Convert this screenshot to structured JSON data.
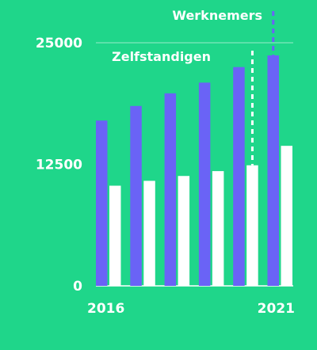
{
  "colors": {
    "background": "#1fd68a",
    "werknemers": "#6a63f6",
    "zelfstandigen": "#ffffff",
    "text": "#ffffff"
  },
  "chart_data": {
    "type": "bar",
    "title": "",
    "xlabel": "",
    "ylabel": "",
    "ylim": [
      0,
      25000
    ],
    "yticks": [
      0,
      12500,
      25000
    ],
    "x": [
      2016,
      2017,
      2018,
      2019,
      2020,
      2021
    ],
    "xtick_labels": [
      "2016",
      "",
      "",
      "",
      "",
      "2021"
    ],
    "legend": "none",
    "grid": false,
    "series": [
      {
        "name": "Werknemers",
        "values": [
          17000,
          18500,
          19800,
          20900,
          22500,
          23700
        ]
      },
      {
        "name": "Zelfstandigen",
        "values": [
          10300,
          10800,
          11300,
          11800,
          12400,
          14400
        ]
      }
    ],
    "annotations": [
      {
        "text": "Werknemers",
        "series": "Werknemers",
        "year": 2021
      },
      {
        "text": "Zelfstandigen",
        "series": "Zelfstandigen",
        "year": 2020
      }
    ]
  }
}
